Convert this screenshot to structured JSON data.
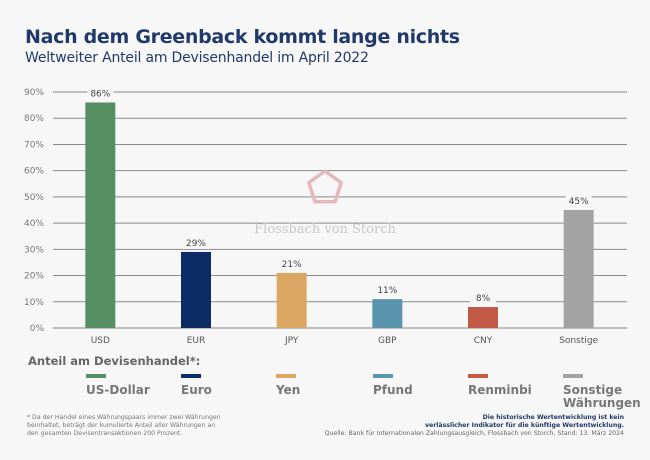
{
  "header": {
    "title": "Nach dem Greenback kommt lange nichts",
    "subtitle": "Weltweiter Anteil am Devisenhandel im April 2022"
  },
  "watermark": {
    "text": "Flossbach von Storch",
    "icon": "pentagon-logo-icon"
  },
  "chart_data": {
    "type": "bar",
    "title": "Nach dem Greenback kommt lange nichts",
    "subtitle": "Weltweiter Anteil am Devisenhandel im April 2022",
    "xlabel": "",
    "ylabel": "",
    "categories": [
      "USD",
      "EUR",
      "JPY",
      "GBP",
      "CNY",
      "Sonstige"
    ],
    "values": [
      86,
      29,
      21,
      11,
      8,
      45
    ],
    "value_labels": [
      "86%",
      "29%",
      "21%",
      "11%",
      "8%",
      "45%"
    ],
    "colors": [
      "#558f62",
      "#0d2c65",
      "#dca762",
      "#5a95b0",
      "#c25a47",
      "#a3a3a3"
    ],
    "ylim": [
      0,
      90
    ],
    "yticks": [
      0,
      10,
      20,
      30,
      40,
      50,
      60,
      70,
      80,
      90
    ],
    "ytick_labels": [
      "0%",
      "10%",
      "20%",
      "30%",
      "40%",
      "50%",
      "60%",
      "70%",
      "80%",
      "90%"
    ],
    "grid": true,
    "legend_position": "bottom"
  },
  "legend": {
    "title": "Anteil am Devisenhandel*:",
    "items": [
      {
        "label": "US-Dollar",
        "label2": "",
        "color": "#558f62"
      },
      {
        "label": "Euro",
        "label2": "",
        "color": "#0d2c65"
      },
      {
        "label": "Yen",
        "label2": "",
        "color": "#dca762"
      },
      {
        "label": "Pfund",
        "label2": "",
        "color": "#5a95b0"
      },
      {
        "label": "Renminbi",
        "label2": "",
        "color": "#c25a47"
      },
      {
        "label": "Sonstige",
        "label2": "Währungen",
        "color": "#a3a3a3"
      }
    ]
  },
  "footer": {
    "footnote": "* Da der Handel eines Währungspaars immer zwei Währungen beinhaltet, beträgt der kumulierte Anteil aller Währungen an den gesamten Devisentransaktionen 200 Prozent.",
    "disclaimer_line1": "Die historische Wertentwicklung ist kein",
    "disclaimer_line2": "verlässlicher Indikator für die künftige Wertentwicklung.",
    "source": "Quelle: Bank für Internationalen Zahlungsausgleich, Flossbach von Storch, Stand: 13. März 2024"
  }
}
